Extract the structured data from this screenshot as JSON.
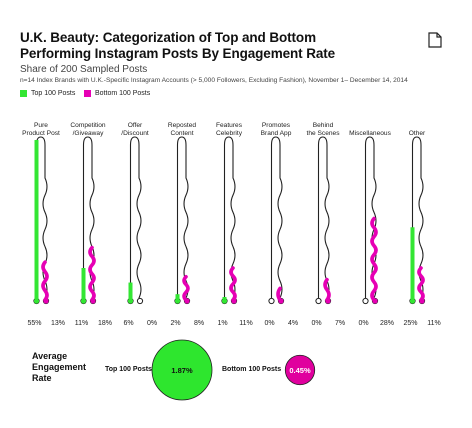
{
  "header": {
    "title_line1": "U.K. Beauty: Categorization of Top and Bottom",
    "title_line2": "Performing Instagram Posts By Engagement Rate",
    "subtitle": "Share of 200 Sampled Posts",
    "note": "n=14 Index Brands with U.K.-Specific Instagram Accounts (> 5,000 Followers, Excluding Fashion), November 1– December 14, 2014"
  },
  "legend": {
    "top": "Top 100 Posts",
    "bottom": "Bottom 100 Posts"
  },
  "colors": {
    "top": "#33e633",
    "bottom": "#e600b4",
    "top_circle": "#2ee62e",
    "bottom_circle": "#e0009e"
  },
  "chart_data": {
    "type": "bar",
    "title": "U.K. Beauty: Categorization of Top and Bottom Performing Instagram Posts By Engagement Rate",
    "subtitle": "Share of 200 Sampled Posts",
    "categories": [
      "Pure\nProduct Post",
      "Competition\n/Giveaway",
      "Offer\n/Discount",
      "Reposted\nContent",
      "Features\nCelebrity",
      "Promotes\nBrand App",
      "Behind\nthe Scenes",
      "Miscellaneous",
      "Other"
    ],
    "series": [
      {
        "name": "Top 100 Posts",
        "values": [
          55,
          11,
          6,
          2,
          1,
          0,
          0,
          0,
          25
        ],
        "labels": [
          "55%",
          "11%",
          "6%",
          "2%",
          "1%",
          "0%",
          "0%",
          "0%",
          "25%"
        ]
      },
      {
        "name": "Bottom 100 Posts",
        "values": [
          13,
          18,
          0,
          8,
          11,
          4,
          7,
          28,
          11
        ],
        "labels": [
          "13%",
          "18%",
          "0%",
          "8%",
          "11%",
          "4%",
          "7%",
          "28%",
          "11%"
        ]
      }
    ],
    "ylim": [
      0,
      55
    ]
  },
  "average_engagement": {
    "label_line1": "Average",
    "label_line2": "Engagement",
    "label_line3": "Rate",
    "top_label": "Top 100 Posts",
    "top_value": "1.87%",
    "bottom_label": "Bottom 100 Posts",
    "bottom_value": "0.45%",
    "top_rate": 1.87,
    "bottom_rate": 0.45
  }
}
